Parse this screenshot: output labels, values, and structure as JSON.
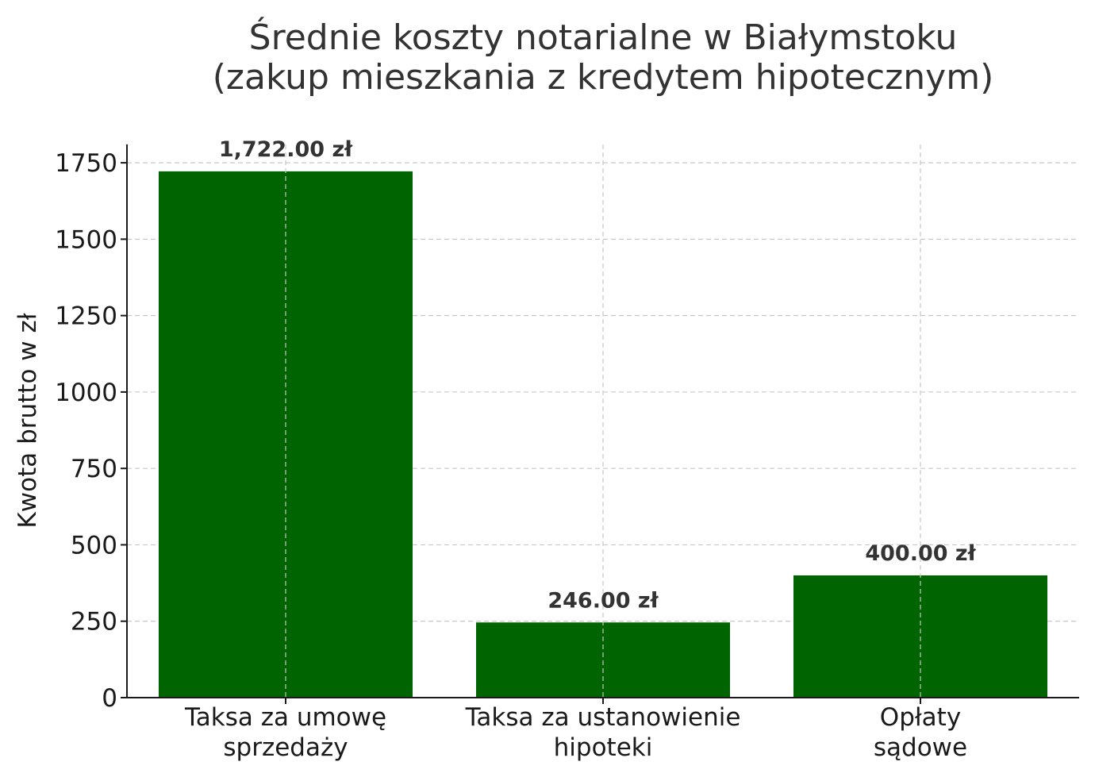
{
  "chart_data": {
    "type": "bar",
    "title_lines": [
      "Średnie koszty notarialne w Białymstoku",
      "(zakup mieszkania z kredytem hipotecznym)"
    ],
    "ylabel": "Kwota brutto w zł",
    "xlabel": "",
    "categories": [
      [
        "Taksa za umowę",
        "sprzedaży"
      ],
      [
        "Taksa za ustanowienie",
        "hipoteki"
      ],
      [
        "Opłaty",
        "sądowe"
      ]
    ],
    "values": [
      1722,
      246,
      400
    ],
    "data_labels": [
      "1,722.00 zł",
      "246.00 zł",
      "400.00 zł"
    ],
    "ylim": [
      0,
      1810
    ],
    "yticks": [
      0,
      250,
      500,
      750,
      1000,
      1250,
      1500,
      1750
    ],
    "grid": true,
    "bar_color": "#006400"
  }
}
